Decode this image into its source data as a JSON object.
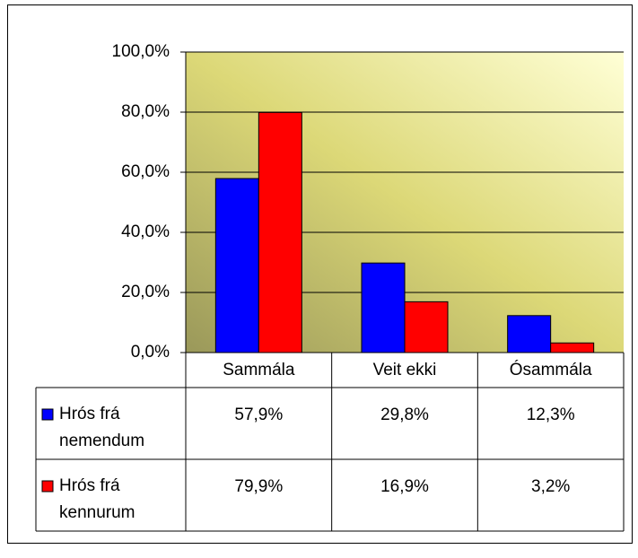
{
  "chart_data": {
    "type": "bar",
    "categories": [
      "Sammála",
      "Veit ekki",
      "Ósammála"
    ],
    "series": [
      {
        "name": "Hrós frá nemendum",
        "color": "#0000ff",
        "values": [
          57.9,
          29.8,
          12.3
        ],
        "value_labels": [
          "57,9%",
          "29,8%",
          "12,3%"
        ]
      },
      {
        "name": "Hrós frá kennurum",
        "color": "#ff0000",
        "values": [
          79.9,
          16.9,
          3.2
        ],
        "value_labels": [
          "79,9%",
          "16,9%",
          "3,2%"
        ]
      }
    ],
    "ylim": [
      0,
      100
    ],
    "yticks": [
      {
        "value": 0,
        "label": "0,0%"
      },
      {
        "value": 20,
        "label": "20,0%"
      },
      {
        "value": 40,
        "label": "40,0%"
      },
      {
        "value": 60,
        "label": "60,0%"
      },
      {
        "value": 80,
        "label": "80,0%"
      },
      {
        "value": 100,
        "label": "100,0%"
      }
    ],
    "grid": true
  }
}
